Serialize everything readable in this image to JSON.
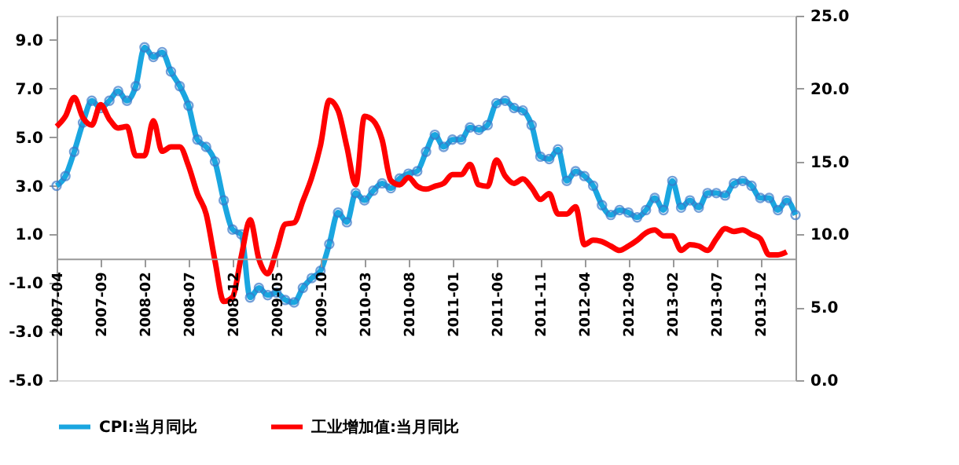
{
  "chart_data": {
    "type": "line",
    "categories": [
      "2007-04",
      null,
      null,
      null,
      null,
      "2007-09",
      null,
      null,
      null,
      null,
      "2008-02",
      null,
      null,
      null,
      null,
      "2008-07",
      null,
      null,
      null,
      null,
      "2008-12",
      null,
      null,
      null,
      null,
      "2009-05",
      null,
      null,
      null,
      null,
      "2009-10",
      null,
      null,
      null,
      null,
      "2010-03",
      null,
      null,
      null,
      null,
      "2010-08",
      null,
      null,
      null,
      null,
      "2011-01",
      null,
      null,
      null,
      null,
      "2011-06",
      null,
      null,
      null,
      null,
      "2011-11",
      null,
      null,
      null,
      null,
      "2012-04",
      null,
      null,
      null,
      null,
      "2012-09",
      null,
      null,
      null,
      null,
      "2013-02",
      null,
      null,
      null,
      null,
      "2013-07",
      null,
      null,
      null,
      null,
      "2013-12",
      null,
      null,
      null,
      null
    ],
    "series": [
      {
        "name": "CPI:当月同比",
        "color": "#1aa6e0",
        "marker": "circle",
        "values": [
          3.0,
          3.4,
          4.4,
          5.6,
          6.5,
          6.2,
          6.5,
          6.9,
          6.5,
          7.1,
          8.7,
          8.3,
          8.5,
          7.7,
          7.1,
          6.3,
          4.9,
          4.6,
          4.0,
          2.4,
          1.2,
          1.0,
          -1.6,
          -1.2,
          -1.5,
          -1.4,
          -1.7,
          -1.8,
          -1.2,
          -0.8,
          -0.5,
          0.6,
          1.9,
          1.5,
          2.7,
          2.4,
          2.8,
          3.1,
          2.9,
          3.3,
          3.5,
          3.6,
          4.4,
          5.1,
          4.6,
          4.9,
          4.9,
          5.4,
          5.3,
          5.5,
          6.4,
          6.5,
          6.2,
          6.1,
          5.5,
          4.2,
          4.1,
          4.5,
          3.2,
          3.6,
          3.4,
          3.0,
          2.2,
          1.8,
          2.0,
          1.9,
          1.7,
          2.0,
          2.5,
          2.0,
          3.2,
          2.1,
          2.4,
          2.1,
          2.7,
          2.7,
          2.6,
          3.1,
          3.2,
          3.0,
          2.5,
          2.5,
          2.0,
          2.4,
          1.8
        ]
      },
      {
        "name": "工业增加值:当月同比",
        "color": "#ff0000",
        "marker": "none",
        "axis": "y2",
        "values": [
          17.4,
          18.1,
          19.4,
          18.0,
          17.5,
          18.9,
          17.9,
          17.3,
          17.4,
          15.4,
          15.4,
          17.8,
          15.7,
          16.0,
          16.0,
          14.7,
          12.8,
          11.4,
          8.2,
          5.4,
          5.7,
          8.5,
          11.0,
          8.3,
          7.3,
          8.9,
          10.7,
          10.8,
          12.3,
          13.9,
          16.1,
          19.2,
          18.5,
          16.0,
          13.4,
          18.1,
          17.8,
          16.5,
          13.7,
          13.4,
          13.9,
          13.3,
          13.1,
          13.3,
          13.5,
          14.1,
          14.1,
          14.8,
          13.4,
          13.3,
          15.1,
          14.0,
          13.5,
          13.8,
          13.2,
          12.4,
          12.8,
          11.4,
          11.4,
          11.9,
          9.3,
          9.6,
          9.5,
          9.2,
          8.9,
          9.2,
          9.6,
          10.1,
          10.3,
          9.9,
          9.9,
          8.9,
          9.3,
          9.2,
          8.9,
          9.7,
          10.4,
          10.2,
          10.3,
          10.0,
          9.7,
          8.6,
          8.6,
          8.8,
          null
        ]
      }
    ],
    "ylim": [
      -5,
      10
    ],
    "yticks": [
      {
        "value": -5,
        "label": "-5.0"
      },
      {
        "value": -3,
        "label": "-3.0"
      },
      {
        "value": -1,
        "label": "-1.0"
      },
      {
        "value": 1,
        "label": "1.0"
      },
      {
        "value": 3,
        "label": "3.0"
      },
      {
        "value": 5,
        "label": "5.0"
      },
      {
        "value": 7,
        "label": "7.0"
      },
      {
        "value": 9,
        "label": "9.0"
      }
    ],
    "y2lim": [
      0,
      25
    ],
    "y2ticks": [
      {
        "value": 0,
        "label": "0.0"
      },
      {
        "value": 5,
        "label": "5.0"
      },
      {
        "value": 10,
        "label": "10.0"
      },
      {
        "value": 15,
        "label": "15.0"
      },
      {
        "value": 20,
        "label": "20.0"
      },
      {
        "value": 25,
        "label": "25.0"
      }
    ],
    "grid": false,
    "legend": "bottom"
  }
}
